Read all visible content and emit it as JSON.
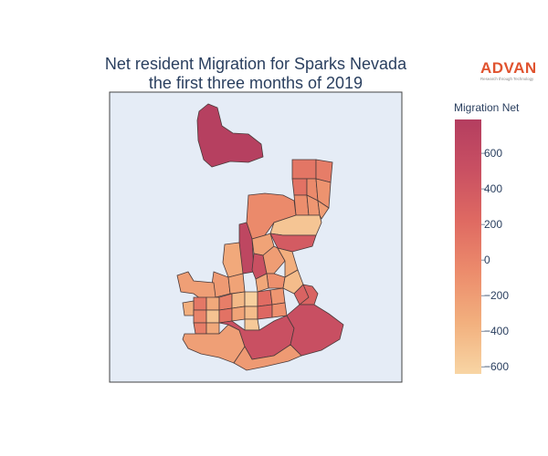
{
  "title": {
    "line1": "Net resident Migration for Sparks Nevada",
    "line2": "the first three months of 2019"
  },
  "brand": {
    "name": "ADVAN",
    "tagline": "Research through Technology"
  },
  "colorbar": {
    "title": "Migration Net",
    "range": [
      -640,
      790
    ],
    "ticks": [
      {
        "value": 600,
        "label": "600"
      },
      {
        "value": 400,
        "label": "400"
      },
      {
        "value": 200,
        "label": "200"
      },
      {
        "value": 0,
        "label": "0"
      },
      {
        "value": -200,
        "label": "−200"
      },
      {
        "value": -400,
        "label": "−400"
      },
      {
        "value": -600,
        "label": "−600"
      }
    ],
    "colors": [
      "#f8d5a4",
      "#f2b07e",
      "#ec8c6c",
      "#df6a62",
      "#c95062",
      "#b43e60"
    ]
  },
  "map": {
    "background": "#e5ecf6",
    "regions": [
      {
        "id": "north-enclave",
        "value": 760
      },
      {
        "id": "ne-tall-a",
        "value": 120
      },
      {
        "id": "ne-tall-b",
        "value": 60
      },
      {
        "id": "ne-tall-c",
        "value": 150
      },
      {
        "id": "ne-tall-d",
        "value": -50
      },
      {
        "id": "ne-tall-e",
        "value": -120
      },
      {
        "id": "ne-tall-f",
        "value": -80
      },
      {
        "id": "ne-tall-g",
        "value": -150
      },
      {
        "id": "ne-tall-h",
        "value": -200
      },
      {
        "id": "mid-big",
        "value": -50
      },
      {
        "id": "mid-left-strip",
        "value": 650
      },
      {
        "id": "mid-right-pale",
        "value": -520
      },
      {
        "id": "mid-center-a",
        "value": -250
      },
      {
        "id": "mid-center-b",
        "value": -300
      },
      {
        "id": "mid-east",
        "value": 380
      },
      {
        "id": "center-north",
        "value": 500
      },
      {
        "id": "center-a",
        "value": -200
      },
      {
        "id": "center-b",
        "value": -350
      },
      {
        "id": "center-c",
        "value": -100
      },
      {
        "id": "center-d",
        "value": -450
      },
      {
        "id": "center-e",
        "value": -280
      },
      {
        "id": "center-f",
        "value": 300
      },
      {
        "id": "west-block-a",
        "value": -180
      },
      {
        "id": "west-block-b",
        "value": -250
      },
      {
        "id": "west-arm",
        "value": -220
      },
      {
        "id": "core-a",
        "value": 100
      },
      {
        "id": "core-b",
        "value": -300
      },
      {
        "id": "core-c",
        "value": 50
      },
      {
        "id": "core-d",
        "value": -420
      },
      {
        "id": "core-e",
        "value": -600
      },
      {
        "id": "core-f",
        "value": 200
      },
      {
        "id": "core-g",
        "value": -150
      },
      {
        "id": "core-h",
        "value": -350
      },
      {
        "id": "core-i",
        "value": 0
      },
      {
        "id": "core-j",
        "value": -500
      },
      {
        "id": "core-k",
        "value": 150
      },
      {
        "id": "core-l",
        "value": -250
      },
      {
        "id": "core-m",
        "value": -450
      },
      {
        "id": "core-n",
        "value": 250
      },
      {
        "id": "core-o",
        "value": -100
      },
      {
        "id": "core-p",
        "value": -550
      },
      {
        "id": "core-q",
        "value": 50
      },
      {
        "id": "core-r",
        "value": -300
      },
      {
        "id": "south-left",
        "value": -220
      },
      {
        "id": "south-center",
        "value": 500
      },
      {
        "id": "south-east",
        "value": 520
      },
      {
        "id": "east-lobe",
        "value": 300
      },
      {
        "id": "south-strip",
        "value": -180
      }
    ]
  }
}
